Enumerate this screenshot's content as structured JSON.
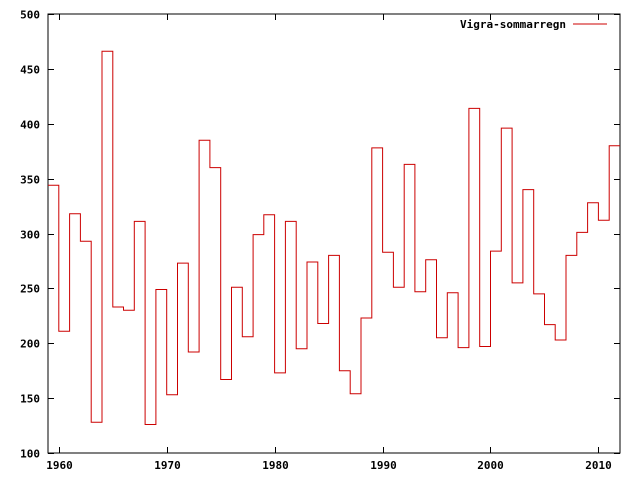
{
  "chart_data": {
    "type": "line",
    "style": "steps",
    "title": "",
    "xlabel": "",
    "ylabel": "",
    "xlim": [
      1959,
      2012
    ],
    "ylim": [
      100,
      500
    ],
    "x_ticks": [
      1960,
      1970,
      1980,
      1990,
      2000,
      2010
    ],
    "y_ticks": [
      100,
      150,
      200,
      250,
      300,
      350,
      400,
      450,
      500
    ],
    "grid": false,
    "legend_position": "top-right",
    "series": [
      {
        "name": "Vigra-sommarregn",
        "color": "#cc0000",
        "x": [
          1959,
          1960,
          1961,
          1962,
          1963,
          1964,
          1965,
          1966,
          1967,
          1968,
          1969,
          1970,
          1971,
          1972,
          1973,
          1974,
          1975,
          1976,
          1977,
          1978,
          1979,
          1980,
          1981,
          1982,
          1983,
          1984,
          1985,
          1986,
          1987,
          1988,
          1989,
          1990,
          1991,
          1992,
          1993,
          1994,
          1995,
          1996,
          1997,
          1998,
          1999,
          2000,
          2001,
          2002,
          2003,
          2004,
          2005,
          2006,
          2007,
          2008,
          2009,
          2010,
          2011
        ],
        "values": [
          344,
          211,
          318,
          293,
          128,
          466,
          233,
          230,
          311,
          126,
          249,
          153,
          273,
          192,
          385,
          360,
          167,
          251,
          206,
          299,
          317,
          173,
          311,
          195,
          274,
          218,
          280,
          175,
          154,
          223,
          378,
          283,
          251,
          363,
          247,
          276,
          205,
          246,
          196,
          414,
          197,
          284,
          396,
          255,
          340,
          245,
          217,
          203,
          280,
          301,
          328,
          312,
          380
        ]
      }
    ]
  }
}
